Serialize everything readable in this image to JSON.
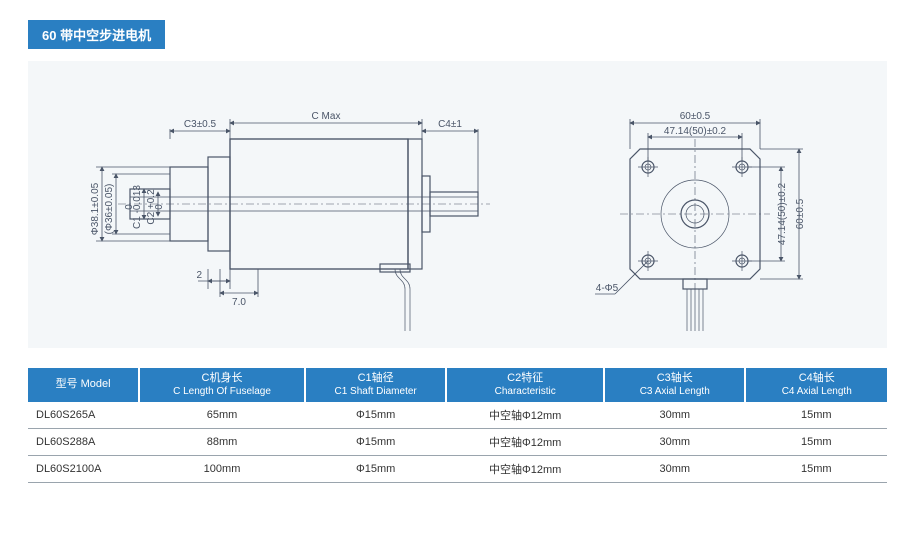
{
  "title": "60 带中空步进电机",
  "diagram": {
    "side": {
      "labels": {
        "c3": "C3±0.5",
        "cmax": "C Max",
        "c4": "C4±1",
        "d1": "Φ38.1±0.05",
        "d2": "(Φ36±0.05)",
        "c1": "C1 -0.013",
        "c2": "C2 +0.2",
        "n0": "0",
        "two": "2",
        "seven": "7.0"
      }
    },
    "front": {
      "labels": {
        "w": "60±0.5",
        "bc": "47.14(50)±0.2",
        "h": "60±0.5",
        "bcv": "47.14(50)±0.2",
        "hole": "4-Φ5"
      }
    }
  },
  "table": {
    "columns": [
      {
        "cn": "型号 Model",
        "en": ""
      },
      {
        "cn": "C机身长",
        "en": "C Length Of Fuselage"
      },
      {
        "cn": "C1轴径",
        "en": "C1 Shaft Diameter"
      },
      {
        "cn": "C2特征",
        "en": "Characteristic"
      },
      {
        "cn": "C3轴长",
        "en": "C3 Axial Length"
      },
      {
        "cn": "C4轴长",
        "en": "C4 Axial Length"
      }
    ],
    "rows": [
      [
        "DL60S265A",
        "65mm",
        "Φ15mm",
        "中空轴Φ12mm",
        "30mm",
        "15mm"
      ],
      [
        "DL60S288A",
        "88mm",
        "Φ15mm",
        "中空轴Φ12mm",
        "30mm",
        "15mm"
      ],
      [
        "DL60S2100A",
        "100mm",
        "Φ15mm",
        "中空轴Φ12mm",
        "30mm",
        "15mm"
      ]
    ],
    "col_widths": [
      "110px",
      "164px",
      "140px",
      "156px",
      "140px",
      "140px"
    ]
  },
  "colors": {
    "accent": "#2a7fc2",
    "panel_bg": "#f4f7f9",
    "line": "#4a5568"
  }
}
